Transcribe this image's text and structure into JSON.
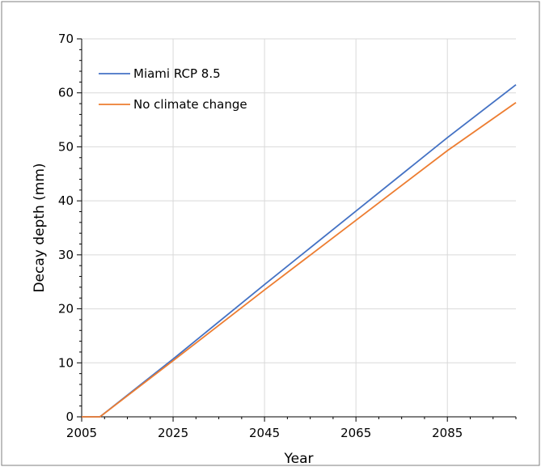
{
  "chart_data": {
    "type": "line",
    "title": "",
    "xlabel": "Year",
    "ylabel": "Decay depth (mm)",
    "xlim": [
      2005,
      2100
    ],
    "ylim": [
      0,
      70
    ],
    "x_ticks": [
      "2005",
      "2025",
      "2045",
      "2065",
      "2085"
    ],
    "y_ticks": [
      "0",
      "10",
      "20",
      "30",
      "40",
      "50",
      "60",
      "70"
    ],
    "grid": true,
    "legend_position": "top-left",
    "series": [
      {
        "name": "Miami RCP 8.5",
        "color": "#4472C4",
        "x": [
          2005,
          2009,
          2025,
          2045,
          2065,
          2085,
          2100
        ],
        "y": [
          0,
          0,
          10.7,
          24.5,
          38.1,
          51.7,
          61.5
        ]
      },
      {
        "name": "No climate change",
        "color": "#ED7D31",
        "x": [
          2005,
          2009,
          2025,
          2045,
          2065,
          2085,
          2100
        ],
        "y": [
          0,
          0,
          10.4,
          23.5,
          36.4,
          49.3,
          58.2
        ]
      }
    ]
  }
}
